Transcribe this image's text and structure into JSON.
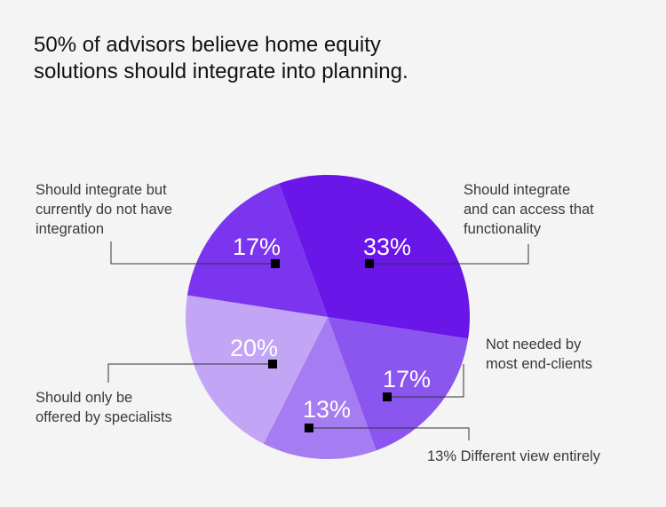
{
  "title_lines": [
    "50% of advisors believe home equity",
    "solutions should integrate into planning."
  ],
  "colors": {
    "background": "#f4f4f4",
    "text": "#3a3a3a",
    "leader": "#333333",
    "marker": "#000000",
    "pct_text": "#ffffff"
  },
  "chart_data": {
    "type": "pie",
    "title": "50% of advisors believe home equity solutions should integrate into planning.",
    "unit": "%",
    "slices": [
      {
        "value": 33,
        "label_text": "33%",
        "category_lines": [
          "Should integrate",
          "and can access that",
          "functionality"
        ],
        "color": "#6a16e8"
      },
      {
        "value": 17,
        "label_text": "17%",
        "category_lines": [
          "Not needed by",
          "most end-clients"
        ],
        "color": "#8b55ef"
      },
      {
        "value": 13,
        "label_text": "13%",
        "category_lines": [
          "13% Different view entirely"
        ],
        "color": "#a57cf2"
      },
      {
        "value": 20,
        "label_text": "20%",
        "category_lines": [
          "Should only be",
          "offered by specialists"
        ],
        "color": "#c2a6f5"
      },
      {
        "value": 17,
        "label_text": "17%",
        "category_lines": [
          "Should integrate but",
          "currently do not have",
          "integration"
        ],
        "color": "#7c35ef"
      }
    ]
  }
}
